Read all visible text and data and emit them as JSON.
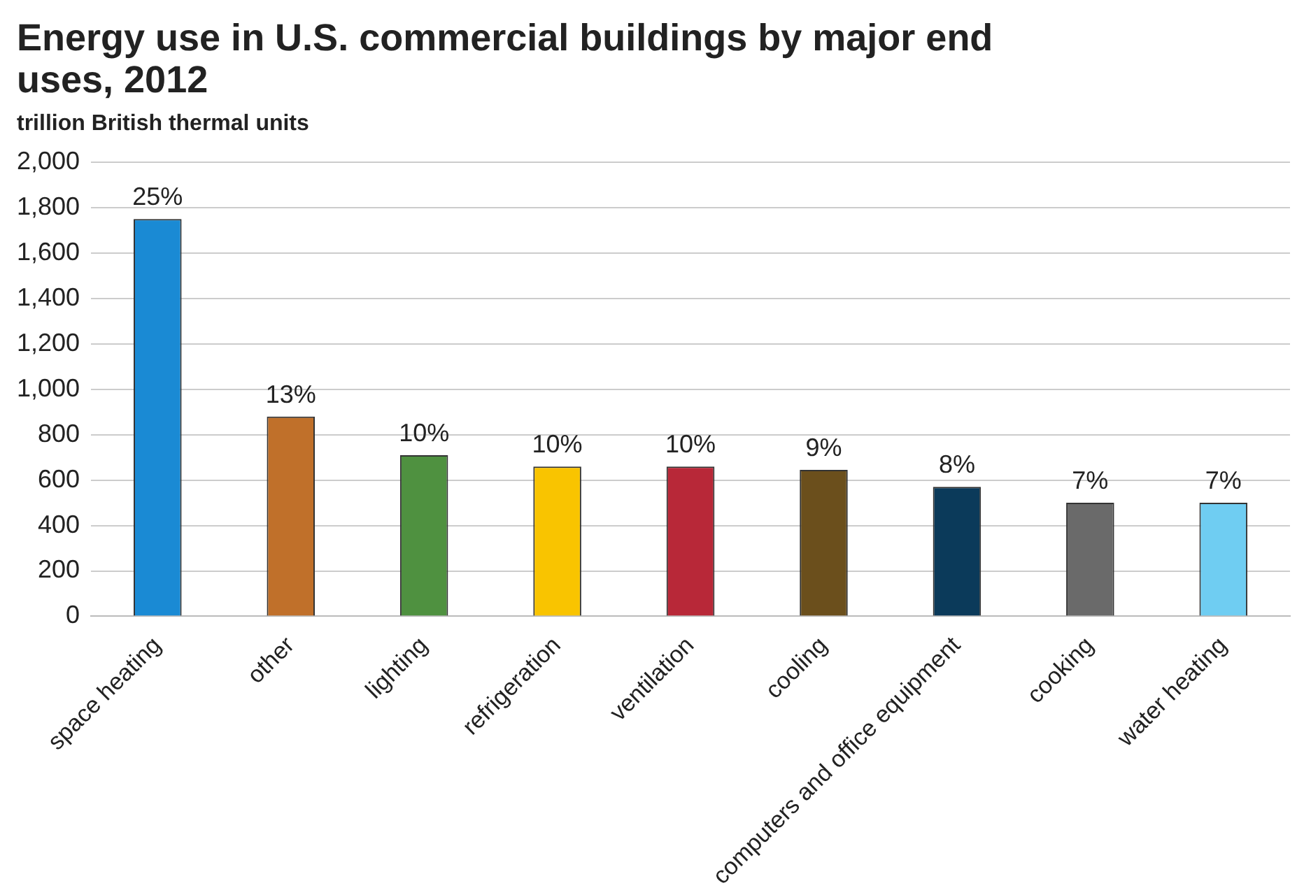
{
  "chart_data": {
    "type": "bar",
    "title": "Energy use in U.S. commercial buildings by major end uses, 2012",
    "subtitle": "trillion British thermal units",
    "categories": [
      "space heating",
      "other",
      "lighting",
      "refrigeration",
      "ventilation",
      "cooling",
      "computers and office equipment",
      "cooking",
      "water heating"
    ],
    "values": [
      1750,
      880,
      710,
      660,
      660,
      645,
      570,
      500,
      500
    ],
    "colors": [
      "#1a8ad4",
      "#c0702a",
      "#4f9140",
      "#f9c400",
      "#b82838",
      "#6b4f1c",
      "#0b3a5a",
      "#6a6a6a",
      "#6fcdf2"
    ],
    "annotations": [
      {
        "text": "25%",
        "x": "space heating",
        "y": 1750
      },
      {
        "text": "13%",
        "x": "other",
        "y": 880
      },
      {
        "text": "10%",
        "x": "lighting",
        "y": 710
      },
      {
        "text": "10%",
        "x": "refrigeration",
        "y": 660
      },
      {
        "text": "10%",
        "x": "ventilation",
        "y": 660
      },
      {
        "text": "9%",
        "x": "cooling",
        "y": 645
      },
      {
        "text": "8%",
        "x": "computers and office equipment",
        "y": 570
      },
      {
        "text": "7%",
        "x": "cooking",
        "y": 500
      },
      {
        "text": "7%",
        "x": "water heating",
        "y": 500
      }
    ],
    "ylim": [
      0,
      2000
    ],
    "yticks": [
      0,
      200,
      400,
      600,
      800,
      {
        "value": 1000,
        "label": "1,000"
      },
      {
        "value": 1200,
        "label": "1,200"
      },
      {
        "value": 1400,
        "label": "1,400"
      },
      {
        "value": 1600,
        "label": "1,600"
      },
      {
        "value": 1800,
        "label": "1,800"
      },
      {
        "value": 2000,
        "label": "2,000"
      }
    ],
    "grid": "y",
    "legend": false
  }
}
